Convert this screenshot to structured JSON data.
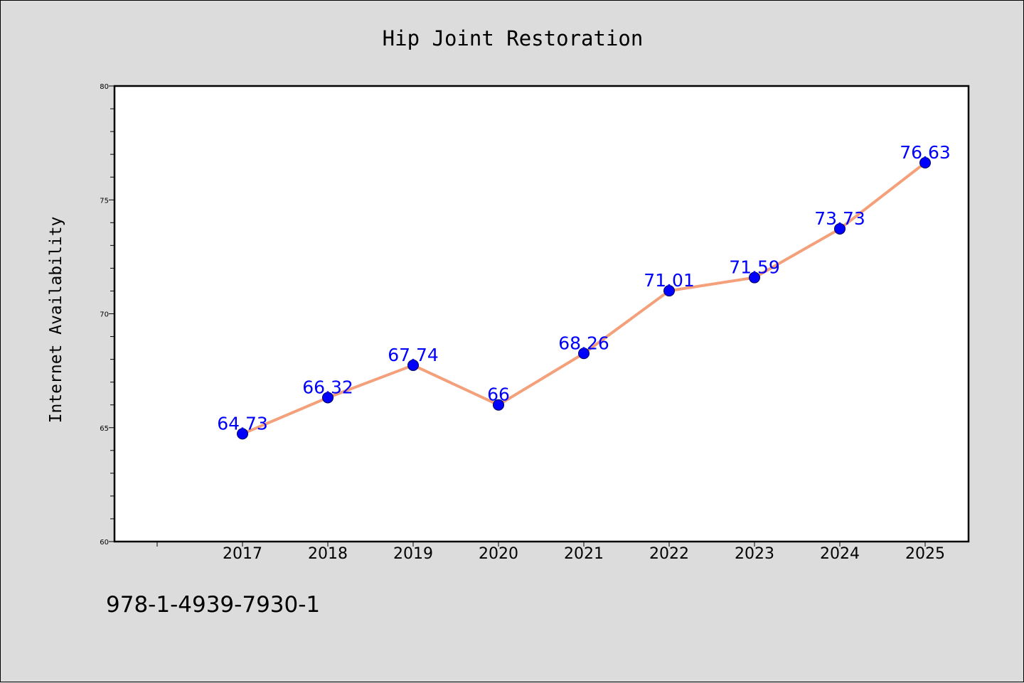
{
  "chart_data": {
    "type": "line",
    "title": "Hip Joint Restoration",
    "ylabel": "Internet Availability",
    "xlabel": "",
    "categories": [
      "2017",
      "2018",
      "2019",
      "2020",
      "2021",
      "2022",
      "2023",
      "2024",
      "2025"
    ],
    "series": [
      {
        "values": [
          64.73,
          66.32,
          67.74,
          66,
          68.26,
          71.01,
          71.59,
          73.73,
          76.63
        ],
        "labels": [
          "64.73",
          "66.32",
          "67.74",
          "66",
          "68.26",
          "71.01",
          "71.59",
          "73.73",
          "76.63"
        ],
        "line_color": "#f4a07a",
        "marker_color": "#0000ff"
      }
    ],
    "ylim": [
      60,
      80
    ],
    "y_ticks": [
      "60",
      "65",
      "70",
      "75",
      "80"
    ],
    "grid": false,
    "legend": "none",
    "plot_background": "#ffffff",
    "figure_background": "#dcdcdc"
  },
  "footer_code": "978-1-4939-7930-1"
}
